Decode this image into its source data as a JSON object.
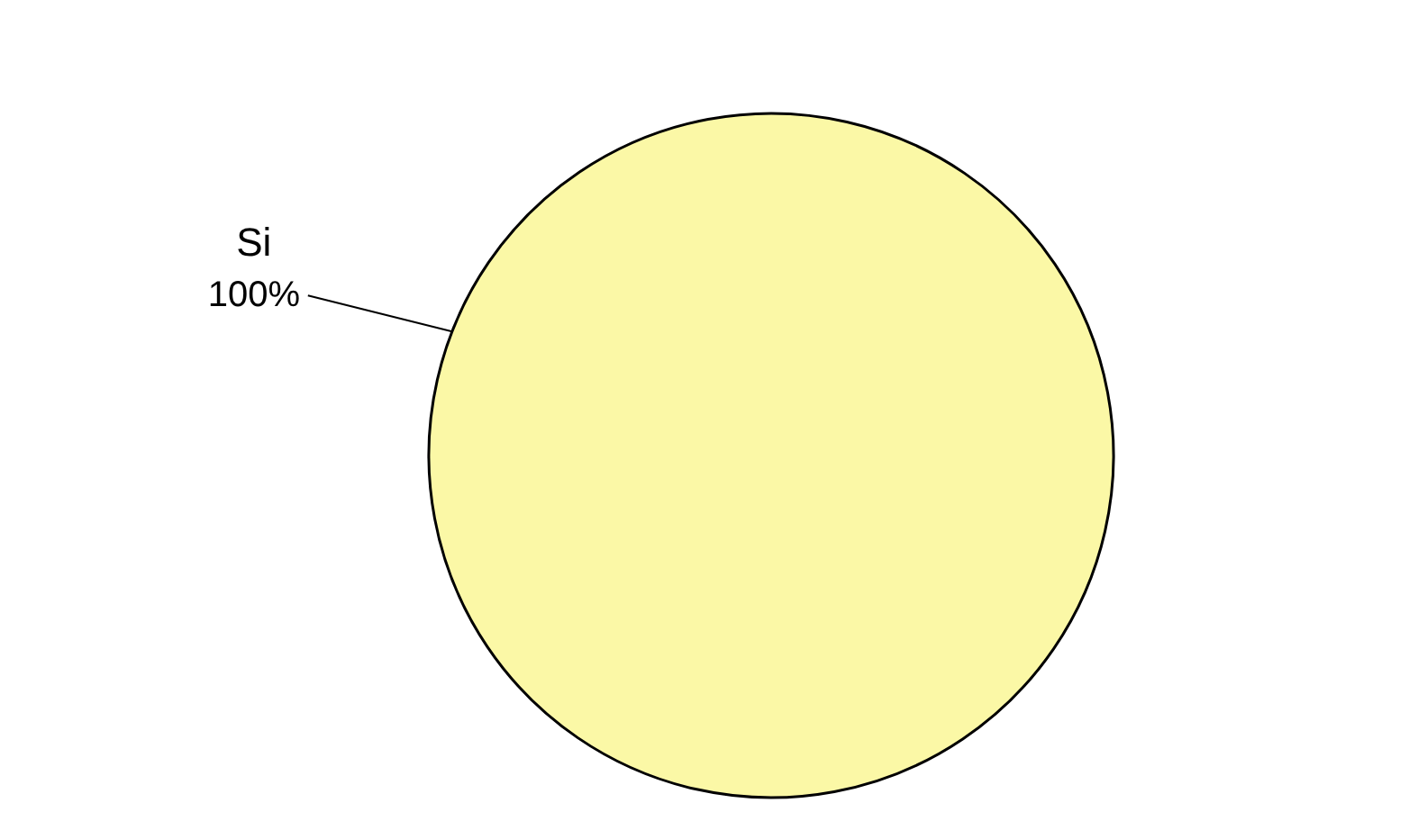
{
  "chart_data": {
    "type": "pie",
    "categories": [
      "Si"
    ],
    "values": [
      100
    ],
    "value_labels": [
      "100%"
    ],
    "colors": [
      "#fbf8a6"
    ]
  }
}
